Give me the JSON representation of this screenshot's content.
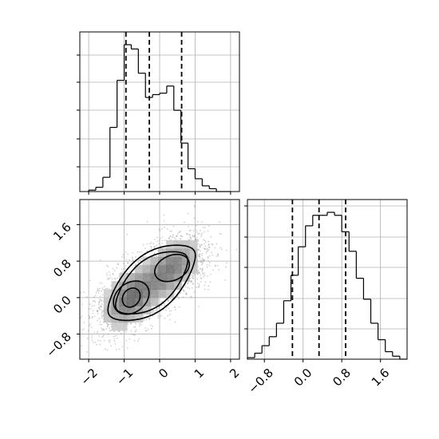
{
  "chart_data": {
    "type": "corner",
    "panels": [
      {
        "id": "hist_x",
        "type": "histogram",
        "variable": "x",
        "xlim": [
          -2.25,
          2.25
        ],
        "grid": true,
        "bin_edges": [
          -2.0,
          -1.8,
          -1.6,
          -1.4,
          -1.2,
          -1.0,
          -0.8,
          -0.6,
          -0.4,
          -0.2,
          0.0,
          0.2,
          0.4,
          0.6,
          0.8,
          1.0,
          1.2,
          1.4,
          1.6,
          1.8,
          2.0
        ],
        "counts": [
          1,
          3,
          10,
          45,
          78,
          103,
          100,
          83,
          66,
          68,
          69,
          74,
          57,
          34,
          16,
          9,
          4,
          2,
          0,
          0
        ],
        "quantiles": [
          -0.95,
          -0.29,
          0.62
        ]
      },
      {
        "id": "hist_y",
        "type": "histogram",
        "variable": "y",
        "xlim": [
          -1.15,
          2.15
        ],
        "grid": true,
        "bin_edges": [
          -1.15,
          -1.0,
          -0.85,
          -0.7,
          -0.55,
          -0.4,
          -0.25,
          -0.1,
          0.05,
          0.2,
          0.35,
          0.5,
          0.65,
          0.8,
          0.95,
          1.1,
          1.25,
          1.4,
          1.55,
          1.7,
          1.85,
          2.0,
          2.15
        ],
        "counts": [
          1,
          4,
          9,
          15,
          24,
          39,
          56,
          75,
          89,
          96,
          96,
          98,
          96,
          85,
          72,
          54,
          40,
          24,
          13,
          5,
          2,
          0
        ],
        "quantiles": [
          -0.22,
          0.33,
          0.88
        ],
        "x_ticks": [
          -0.8,
          0.0,
          0.8,
          1.6
        ],
        "x_tick_labels": [
          "−0.8",
          "0.0",
          "0.8",
          "1.6"
        ]
      },
      {
        "id": "joint_xy",
        "type": "scatter_density",
        "xlim": [
          -2.25,
          2.25
        ],
        "ylim": [
          -1.35,
          2.15
        ],
        "grid": true,
        "x_ticks": [
          -2,
          -1,
          0,
          1,
          2
        ],
        "x_tick_labels": [
          "−2",
          "−1",
          "0",
          "1",
          "2"
        ],
        "y_ticks": [
          -0.8,
          0.0,
          0.8,
          1.6
        ],
        "y_tick_labels": [
          "−0.8",
          "0.0",
          "0.8",
          "1.6"
        ],
        "modes": [
          {
            "x": -0.8,
            "y": 0.0
          },
          {
            "x": 0.35,
            "y": 0.65
          }
        ],
        "contour_levels": 4
      }
    ]
  }
}
